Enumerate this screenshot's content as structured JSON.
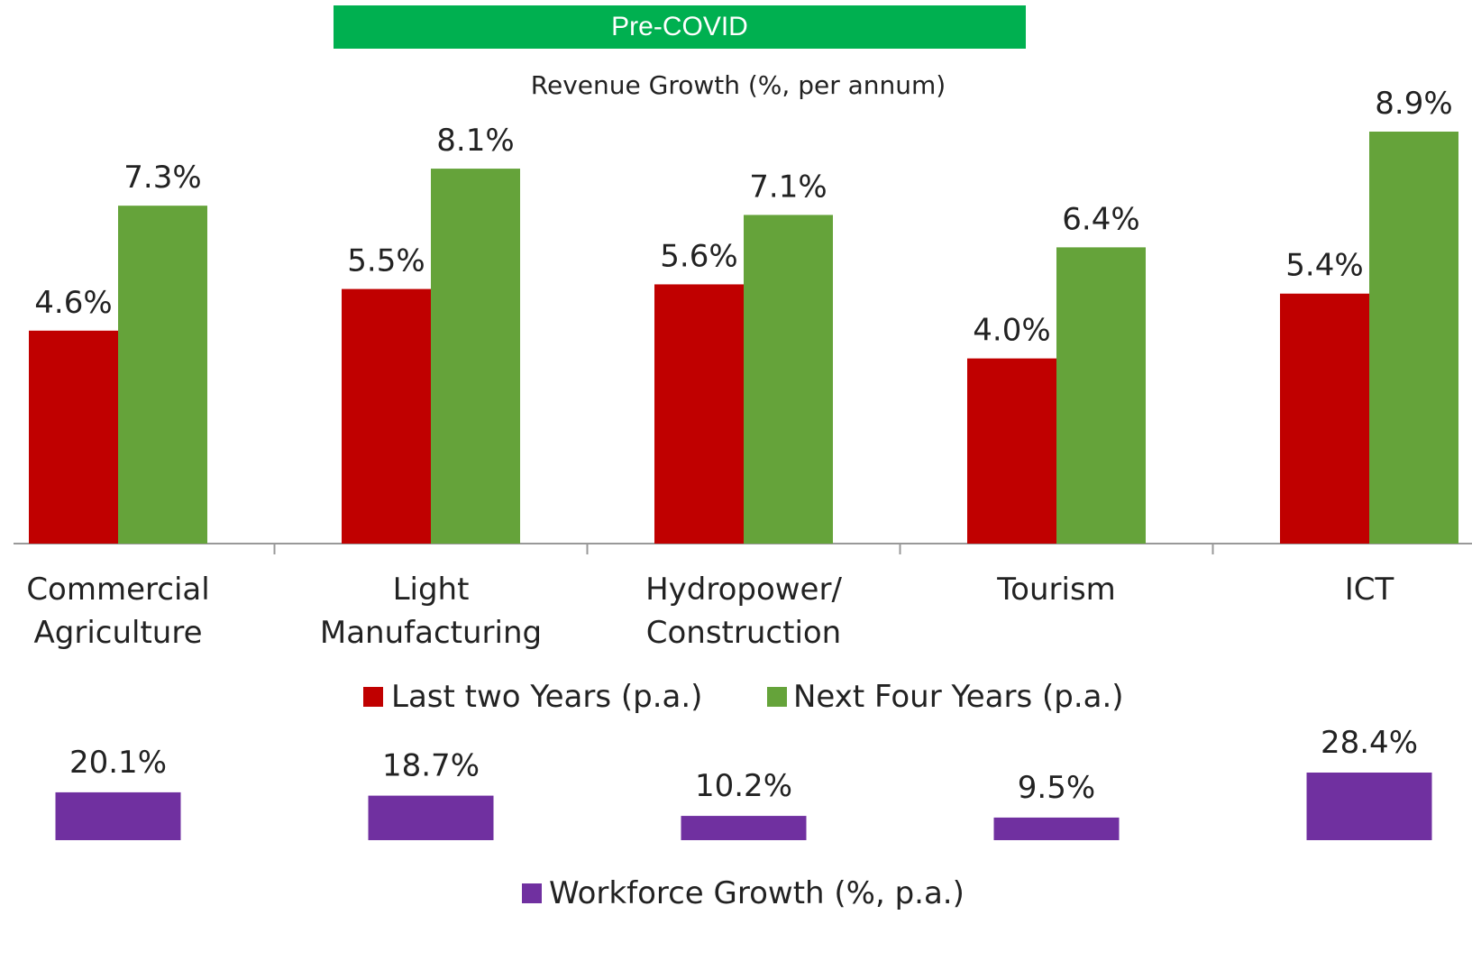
{
  "banner": "Pre-COVID",
  "chart_data": [
    {
      "type": "bar",
      "title": "Revenue Growth (%, per annum)",
      "categories": [
        "Commercial Agriculture",
        "Light Manufacturing",
        "Hydropower/ Construction",
        "Tourism",
        "ICT"
      ],
      "series": [
        {
          "name": "Last two Years (p.a.)",
          "color": "#c00000",
          "values": [
            4.6,
            5.5,
            5.6,
            4.0,
            5.4
          ],
          "value_labels": [
            "4.6%",
            "5.5%",
            "5.6%",
            "4.0%",
            "5.4%"
          ]
        },
        {
          "name": "Next Four Years (p.a.)",
          "color": "#65a33a",
          "values": [
            7.3,
            8.1,
            7.1,
            6.4,
            8.9
          ],
          "value_labels": [
            "7.3%",
            "8.1%",
            "7.1%",
            "6.4%",
            "8.9%"
          ]
        }
      ]
    },
    {
      "type": "bar",
      "series": [
        {
          "name": "Workforce Growth (%, p.a.)",
          "color": "#7030a0",
          "values": [
            20.1,
            18.7,
            10.2,
            9.5,
            28.4
          ],
          "value_labels": [
            "20.1%",
            "18.7%",
            "10.2%",
            "9.5%",
            "28.4%"
          ]
        }
      ]
    }
  ]
}
